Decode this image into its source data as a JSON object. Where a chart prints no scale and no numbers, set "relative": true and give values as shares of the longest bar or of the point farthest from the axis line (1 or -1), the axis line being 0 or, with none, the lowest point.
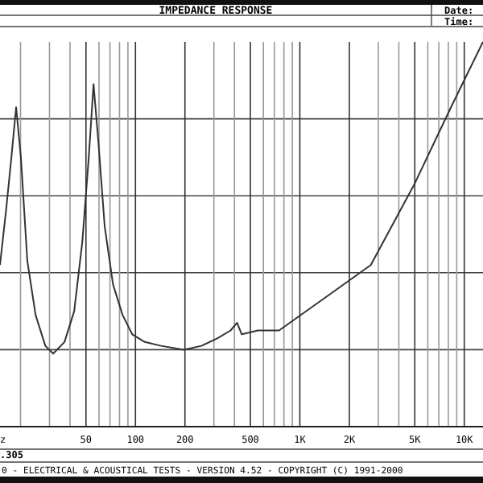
{
  "chart_data": {
    "type": "line",
    "title": "IMPEDANCE RESPONSE",
    "relative": true,
    "log": "x",
    "grid": true,
    "xlim": [
      15,
      13000
    ],
    "xticks": [
      {
        "value": 20,
        "label": null
      },
      {
        "value": 30,
        "label": null
      },
      {
        "value": 40,
        "label": null
      },
      50,
      {
        "value": 60,
        "label": null
      },
      {
        "value": 70,
        "label": null
      },
      {
        "value": 80,
        "label": null
      },
      {
        "value": 90,
        "label": null
      },
      100,
      200,
      {
        "value": 300,
        "label": null
      },
      {
        "value": 400,
        "label": null
      },
      500,
      {
        "value": 600,
        "label": null
      },
      {
        "value": 700,
        "label": null
      },
      {
        "value": 800,
        "label": null
      },
      {
        "value": 900,
        "label": null
      },
      {
        "value": 1000,
        "label": "1K"
      },
      {
        "value": 2000,
        "label": "2K"
      },
      {
        "value": 3000,
        "label": null
      },
      {
        "value": 4000,
        "label": null
      },
      {
        "value": 5000,
        "label": "5K"
      },
      {
        "value": 6000,
        "label": null
      },
      {
        "value": 7000,
        "label": null
      },
      {
        "value": 8000,
        "label": null
      },
      {
        "value": 9000,
        "label": null
      },
      {
        "value": 10000,
        "label": "10K"
      }
    ],
    "x": [
      15,
      16.4,
      17.6,
      18.8,
      20.1,
      22,
      24.7,
      28.3,
      31.6,
      37,
      42.4,
      47.5,
      52,
      55.6,
      59.5,
      65,
      73,
      83.5,
      95.6,
      114,
      143,
      197,
      252,
      316,
      379,
      415,
      443,
      556,
      747,
      1370,
      2700,
      4970,
      8300,
      13000
    ],
    "series": [
      {
        "color": "#333333",
        "values": [
          0.42,
          0.57,
          0.7,
          0.83,
          0.7,
          0.43,
          0.29,
          0.21,
          0.19,
          0.22,
          0.3,
          0.48,
          0.7,
          0.89,
          0.74,
          0.52,
          0.37,
          0.29,
          0.24,
          0.22,
          0.21,
          0.2,
          0.21,
          0.23,
          0.25,
          0.27,
          0.24,
          0.25,
          0.25,
          0.33,
          0.42,
          0.63,
          0.83,
          1
        ]
      }
    ],
    "annotations": [
      "Date:",
      "Time:",
      "z",
      ".305",
      "0 - ELECTRICAL & ACOUSTICAL TESTS - VERSION 4.52 - COPYRIGHT (C) 1991-2000"
    ]
  }
}
